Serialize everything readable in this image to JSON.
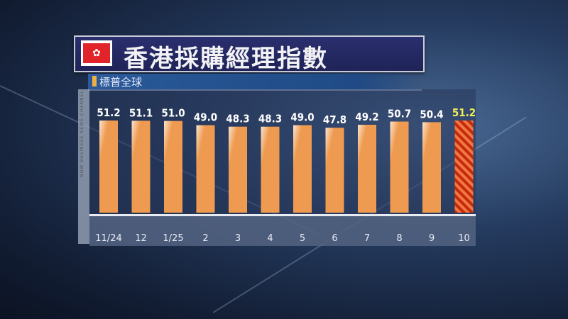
{
  "title": "香港採購經理指數",
  "subtitle": "標普全球",
  "flag_icon": "hong-kong-flag-icon",
  "watermark": "NOW BUSINESS NEWS CHANNEL",
  "colors": {
    "bar": "#ee9a50",
    "highlight_bar": "#d93a18",
    "highlight_label": "#f2ee5a",
    "label": "#ffffff"
  },
  "chart_data": {
    "type": "bar",
    "title": "香港採購經理指數",
    "subtitle": "標普全球",
    "categories": [
      "11/24",
      "12",
      "1/25",
      "2",
      "3",
      "4",
      "5",
      "6",
      "7",
      "8",
      "9",
      "10"
    ],
    "values": [
      51.2,
      51.1,
      51.0,
      49.0,
      48.3,
      48.3,
      49.0,
      47.8,
      49.2,
      50.7,
      50.4,
      51.2
    ],
    "value_labels": [
      "51.2",
      "51.1",
      "51.0",
      "49.0",
      "48.3",
      "48.3",
      "49.0",
      "47.8",
      "49.2",
      "50.7",
      "50.4",
      "51.2"
    ],
    "highlight_index": 11,
    "xlabel": "",
    "ylabel": "",
    "grid": false
  }
}
